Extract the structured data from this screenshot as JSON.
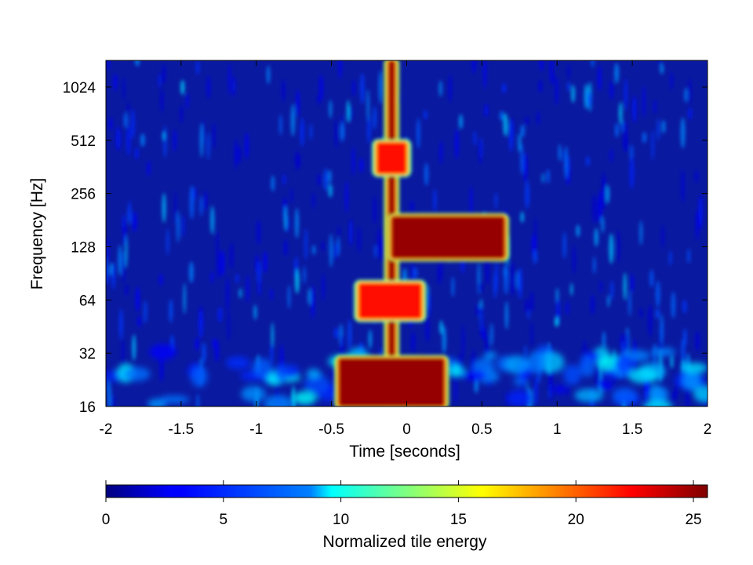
{
  "chart_data": {
    "type": "heatmap",
    "title": "",
    "xlabel": "Time [seconds]",
    "ylabel": "Frequency [Hz]",
    "colorbar_label": "Normalized tile energy",
    "xlim": [
      -2,
      2
    ],
    "ylim": [
      16,
      1448
    ],
    "y_scale": "log2",
    "x_ticks": [
      -2,
      -1.5,
      -1,
      -0.5,
      0,
      0.5,
      1,
      1.5,
      2
    ],
    "x_tick_labels": [
      "-2",
      "-1.5",
      "-1",
      "-0.5",
      "0",
      "0.5",
      "1",
      "1.5",
      "2"
    ],
    "y_ticks": [
      16,
      32,
      64,
      128,
      256,
      512,
      1024
    ],
    "y_tick_labels": [
      "16",
      "32",
      "64",
      "128",
      "256",
      "512",
      "1024"
    ],
    "colorbar_range": [
      0,
      25.6
    ],
    "colorbar_ticks": [
      0,
      5,
      10,
      15,
      20,
      25
    ],
    "colorbar_tick_labels": [
      "0",
      "5",
      "10",
      "15",
      "20",
      "25"
    ],
    "colormap": "jet",
    "features": [
      {
        "description": "vertical spike",
        "t": [
          -0.12,
          -0.08
        ],
        "f": [
          16,
          1448
        ],
        "energy": 25
      },
      {
        "description": "low-frequency burst",
        "t": [
          -0.45,
          0.25
        ],
        "f": [
          16,
          30
        ],
        "energy": 25
      },
      {
        "description": "mid burst",
        "t": [
          -0.32,
          0.1
        ],
        "f": [
          50,
          80
        ],
        "energy": 22
      },
      {
        "description": "horizontal band",
        "t": [
          -0.1,
          0.65
        ],
        "f": [
          110,
          190
        ],
        "energy": 25
      },
      {
        "description": "high burst",
        "t": [
          -0.2,
          0.0
        ],
        "f": [
          330,
          500
        ],
        "energy": 22
      }
    ]
  }
}
